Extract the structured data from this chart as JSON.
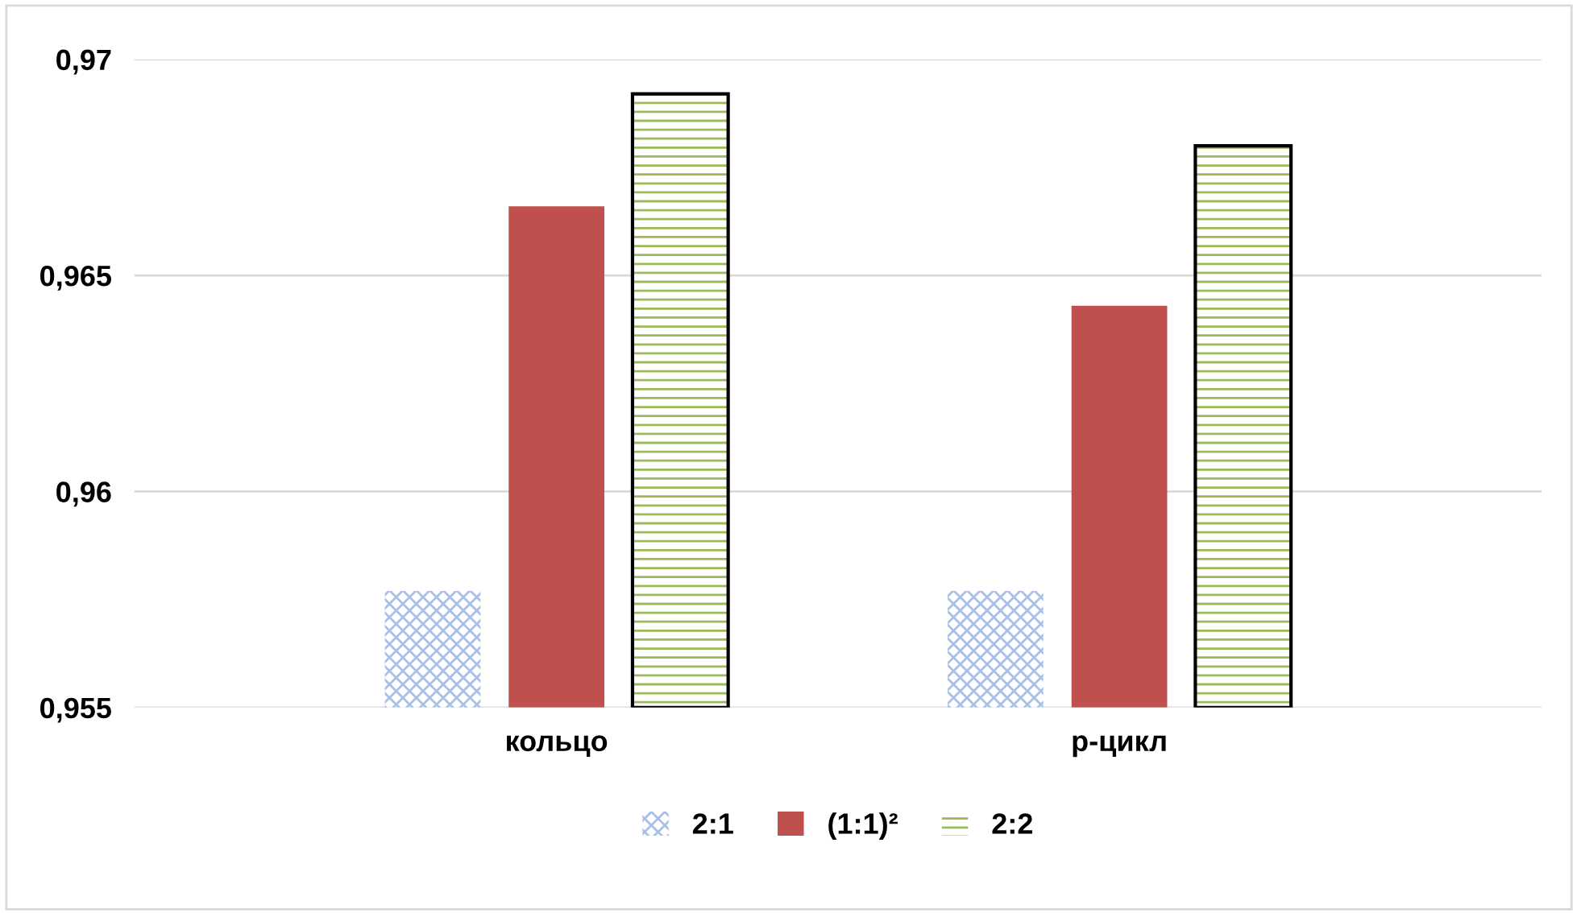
{
  "chart_data": {
    "type": "bar",
    "categories": [
      "кольцо",
      "р-цикл"
    ],
    "series": [
      {
        "name": "2:1",
        "color": "#a8c0e8",
        "values": [
          0.9577,
          0.9577
        ]
      },
      {
        "name": "(1:1)²",
        "color": "#c0504d",
        "values": [
          0.9666,
          0.9643
        ]
      },
      {
        "name": "2:2",
        "color": "#9bbb59",
        "values": [
          0.9692,
          0.968
        ]
      }
    ],
    "ylim": [
      0.955,
      0.97
    ],
    "yticks": [
      {
        "value": 0.955,
        "label": "0,955"
      },
      {
        "value": 0.96,
        "label": "0,96"
      },
      {
        "value": 0.965,
        "label": "0,965"
      },
      {
        "value": 0.97,
        "label": "0,97"
      }
    ],
    "grid": "y",
    "legend": "bottom"
  }
}
